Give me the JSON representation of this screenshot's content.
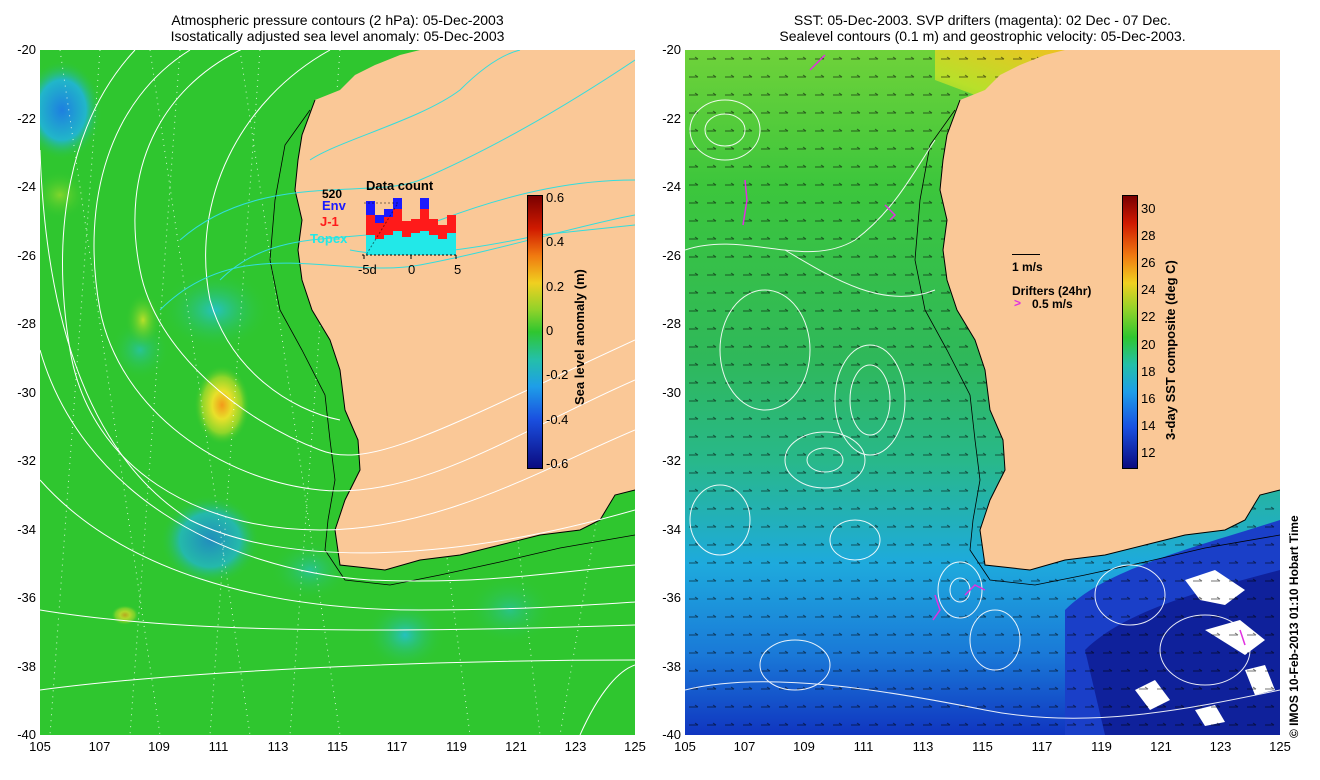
{
  "left_panel": {
    "title_line1": "Atmospheric pressure contours (2 hPa): 05-Dec-2003",
    "title_line2": "Isostatically adjusted sea level anomaly: 05-Dec-2003",
    "colorbar": {
      "label": "Sea level anomaly (m)",
      "ticks": [
        "0.6",
        "0.4",
        "0.2",
        "0",
        "-0.2",
        "-0.4",
        "-0.6"
      ]
    },
    "inset": {
      "title": "Data count",
      "max_label": "520",
      "legend": [
        {
          "name": "Env",
          "color": "#1a1aff"
        },
        {
          "name": "J-1",
          "color": "#ff1a1a"
        },
        {
          "name": "Topex",
          "color": "#22e8e8"
        }
      ],
      "x_ticks": [
        "-5d",
        "0",
        "5"
      ]
    }
  },
  "right_panel": {
    "title_line1": "SST: 05-Dec-2003. SVP drifters (magenta): 02 Dec - 07 Dec.",
    "title_line2": "Sealevel contours (0.1 m) and geostrophic velocity: 05-Dec-2003.",
    "colorbar": {
      "label": "3-day SST composite (deg C)",
      "ticks": [
        "30",
        "28",
        "26",
        "24",
        "22",
        "20",
        "18",
        "16",
        "14",
        "12"
      ]
    },
    "velocity_legend": "1 m/s",
    "drifter_legend_title": "Drifters (24hr)",
    "drifter_legend_value": "0.5 m/s"
  },
  "axes": {
    "y_ticks": [
      "-20",
      "-22",
      "-24",
      "-26",
      "-28",
      "-30",
      "-32",
      "-34",
      "-36",
      "-38",
      "-40"
    ],
    "x_ticks": [
      "105",
      "107",
      "109",
      "111",
      "113",
      "115",
      "117",
      "119",
      "121",
      "123",
      "125"
    ]
  },
  "credit": "© IMOS 10-Feb-2013 01:10 Hobart Time",
  "colors": {
    "land": "#fac897",
    "ocean_left": "#2fc62f",
    "ocean_right_warm": "#8fd24a",
    "ocean_right_cold": "#1e5fd8",
    "contour_white": "#ffffff",
    "contour_cyan": "#33dddd"
  }
}
